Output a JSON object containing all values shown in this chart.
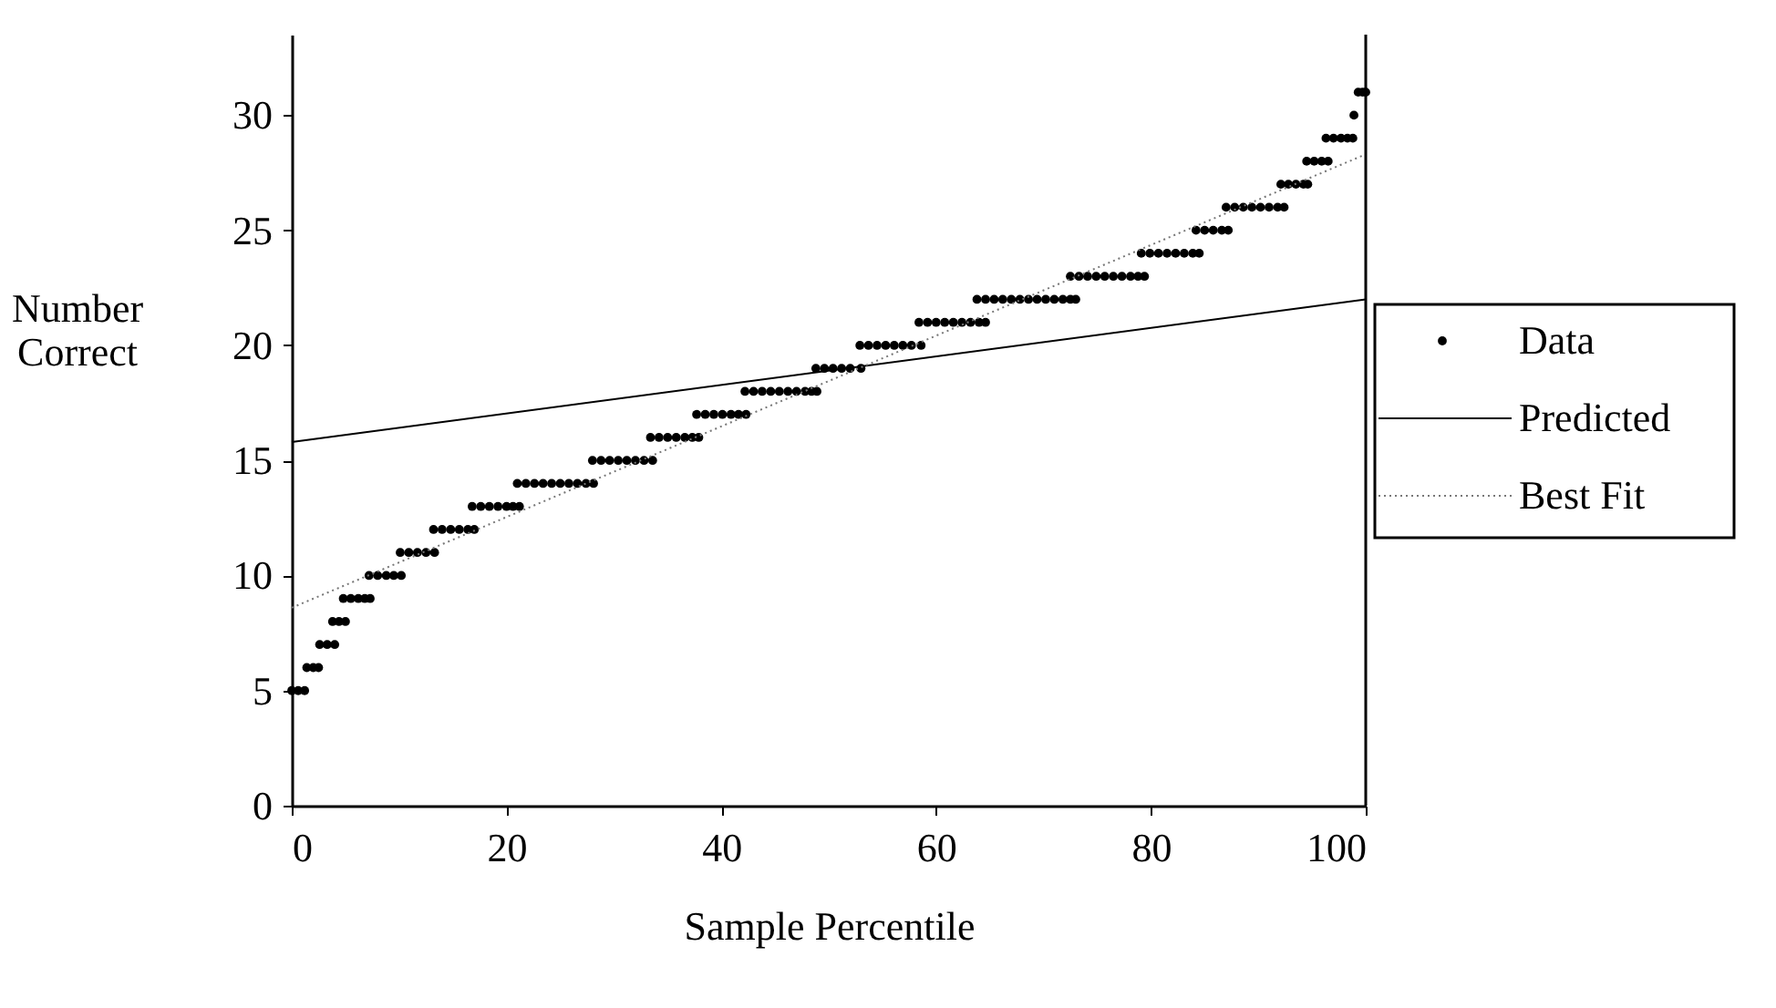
{
  "chart_data": {
    "type": "scatter",
    "xlabel": "Sample Percentile",
    "ylabel": "Number Correct",
    "xlim": [
      0,
      100
    ],
    "ylim": [
      0,
      33.5
    ],
    "xticks": [
      0,
      20,
      40,
      60,
      80,
      100
    ],
    "yticks": [
      0,
      5,
      10,
      15,
      20,
      25,
      30
    ],
    "grid": false,
    "legend": "right",
    "series": [
      {
        "name": "Data",
        "color": "#000000",
        "x": [
          0,
          0.6,
          1.2,
          1.4,
          2.0,
          2.5,
          2.6,
          3.3,
          4.0,
          3.8,
          4.4,
          5.0,
          4.8,
          5.5,
          6.2,
          6.8,
          7.3,
          7.2,
          8,
          8.8,
          9.5,
          10.2,
          10.1,
          10.9,
          11.7,
          12.5,
          13.3,
          13.2,
          14,
          14.8,
          15.6,
          16.4,
          17,
          16.8,
          17.6,
          18.4,
          19.2,
          20,
          20.6,
          21.2,
          21,
          21.8,
          22.6,
          23.4,
          24.2,
          25,
          25.8,
          26.6,
          27.4,
          28.1,
          28,
          28.8,
          29.6,
          30.4,
          31.2,
          32,
          32.8,
          33.6,
          33.4,
          34.2,
          35,
          35.8,
          36.6,
          37.3,
          37.9,
          37.7,
          38.5,
          39.3,
          40.1,
          40.9,
          41.6,
          42.3,
          42.2,
          43,
          43.8,
          44.6,
          45.4,
          46.2,
          47,
          47.8,
          48.4,
          48.9,
          48.8,
          49.6,
          50.4,
          51.2,
          52,
          53,
          52.9,
          53.7,
          54.5,
          55.3,
          56.1,
          56.9,
          57.7,
          58.6,
          58.4,
          59.2,
          60,
          60.8,
          61.6,
          62.4,
          63.2,
          64,
          64.6,
          63.8,
          64.6,
          65.4,
          66.2,
          67,
          67.8,
          68.6,
          69.4,
          70.2,
          71,
          71.8,
          72.5,
          73,
          72.5,
          73.3,
          74.1,
          74.9,
          75.7,
          76.5,
          77.3,
          78.1,
          78.8,
          79.4,
          79.1,
          79.9,
          80.7,
          81.5,
          82.3,
          83.1,
          83.9,
          84.5,
          84.2,
          85,
          85.8,
          86.6,
          87.2,
          87,
          87.8,
          88.6,
          89.4,
          90.2,
          91,
          91.8,
          92.4,
          92.1,
          92.8,
          93.5,
          94.2,
          94.6,
          94.5,
          95.2,
          95.9,
          96.5,
          96.3,
          97,
          97.7,
          98.3,
          98.8,
          98.9,
          99.3,
          99.7,
          100
        ],
        "values": [
          5,
          5,
          5,
          6,
          6,
          6,
          7,
          7,
          7,
          8,
          8,
          8,
          9,
          9,
          9,
          9,
          9,
          10,
          10,
          10,
          10,
          10,
          11,
          11,
          11,
          11,
          11,
          12,
          12,
          12,
          12,
          12,
          12,
          13,
          13,
          13,
          13,
          13,
          13,
          13,
          14,
          14,
          14,
          14,
          14,
          14,
          14,
          14,
          14,
          14,
          15,
          15,
          15,
          15,
          15,
          15,
          15,
          15,
          16,
          16,
          16,
          16,
          16,
          16,
          16,
          17,
          17,
          17,
          17,
          17,
          17,
          17,
          18,
          18,
          18,
          18,
          18,
          18,
          18,
          18,
          18,
          18,
          19,
          19,
          19,
          19,
          19,
          19,
          20,
          20,
          20,
          20,
          20,
          20,
          20,
          20,
          21,
          21,
          21,
          21,
          21,
          21,
          21,
          21,
          21,
          22,
          22,
          22,
          22,
          22,
          22,
          22,
          22,
          22,
          22,
          22,
          22,
          22,
          23,
          23,
          23,
          23,
          23,
          23,
          23,
          23,
          23,
          23,
          24,
          24,
          24,
          24,
          24,
          24,
          24,
          24,
          25,
          25,
          25,
          25,
          25,
          26,
          26,
          26,
          26,
          26,
          26,
          26,
          26,
          27,
          27,
          27,
          27,
          27,
          28,
          28,
          28,
          28,
          29,
          29,
          29,
          29,
          29,
          30,
          31,
          31,
          31
        ]
      },
      {
        "name": "Predicted",
        "type": "line",
        "color": "#000000",
        "line_style": "solid",
        "x": [
          0,
          100
        ],
        "values": [
          15.8,
          22
        ]
      },
      {
        "name": "Best Fit",
        "type": "line",
        "color": "#777777",
        "line_style": "dotted",
        "x": [
          0,
          100
        ],
        "values": [
          8.6,
          28.3
        ]
      }
    ]
  }
}
